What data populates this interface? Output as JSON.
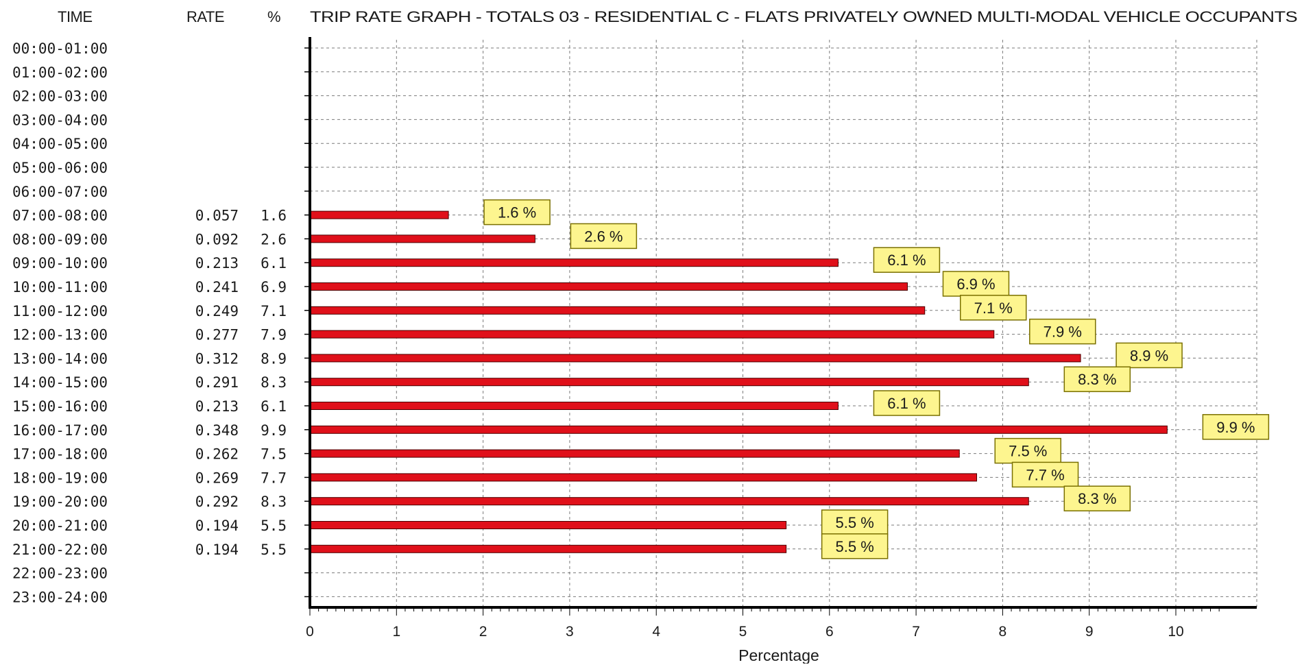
{
  "header": {
    "time": "TIME",
    "rate": "RATE",
    "pct": "%",
    "title": "TRIP RATE GRAPH - TOTALS  03 - RESIDENTIAL  C - FLATS PRIVATELY OWNED     MULTI-MODAL  VEHICLE OCCUPANTS"
  },
  "colors": {
    "bar": "#e0101a",
    "bar_border": "#4a0000",
    "label_bg": "#fdf58f",
    "label_border": "#7a7000",
    "grid": "#7a7a7a",
    "axis": "#000000"
  },
  "chart_data": {
    "type": "bar",
    "orientation": "horizontal",
    "title": "TRIP RATE GRAPH - TOTALS  03 - RESIDENTIAL  C - FLATS PRIVATELY OWNED     MULTI-MODAL  VEHICLE OCCUPANTS",
    "xlabel": "Percentage",
    "xlim": [
      0,
      10.5
    ],
    "xticks": [
      "0",
      "1",
      "2",
      "3",
      "4",
      "5",
      "6",
      "7",
      "8",
      "9",
      "10"
    ],
    "grid": true,
    "categories": [
      "00:00-01:00",
      "01:00-02:00",
      "02:00-03:00",
      "03:00-04:00",
      "04:00-05:00",
      "05:00-06:00",
      "06:00-07:00",
      "07:00-08:00",
      "08:00-09:00",
      "09:00-10:00",
      "10:00-11:00",
      "11:00-12:00",
      "12:00-13:00",
      "13:00-14:00",
      "14:00-15:00",
      "15:00-16:00",
      "16:00-17:00",
      "17:00-18:00",
      "18:00-19:00",
      "19:00-20:00",
      "20:00-21:00",
      "21:00-22:00",
      "22:00-23:00",
      "23:00-24:00"
    ],
    "rates": [
      "",
      "",
      "",
      "",
      "",
      "",
      "",
      "0.057",
      "0.092",
      "0.213",
      "0.241",
      "0.249",
      "0.277",
      "0.312",
      "0.291",
      "0.213",
      "0.348",
      "0.262",
      "0.269",
      "0.292",
      "0.194",
      "0.194",
      "",
      ""
    ],
    "pct_text": [
      "",
      "",
      "",
      "",
      "",
      "",
      "",
      "1.6",
      "2.6",
      "6.1",
      "6.9",
      "7.1",
      "7.9",
      "8.9",
      "8.3",
      "6.1",
      "9.9",
      "7.5",
      "7.7",
      "8.3",
      "5.5",
      "5.5",
      "",
      ""
    ],
    "values": [
      null,
      null,
      null,
      null,
      null,
      null,
      null,
      1.6,
      2.6,
      6.1,
      6.9,
      7.1,
      7.9,
      8.9,
      8.3,
      6.1,
      9.9,
      7.5,
      7.7,
      8.3,
      5.5,
      5.5,
      null,
      null
    ],
    "data_labels": [
      "",
      "",
      "",
      "",
      "",
      "",
      "",
      "1.6 %",
      "2.6 %",
      "6.1 %",
      "6.9 %",
      "7.1 %",
      "7.9 %",
      "8.9 %",
      "8.3 %",
      "6.1 %",
      "9.9 %",
      "7.5 %",
      "7.7 %",
      "8.3 %",
      "5.5 %",
      "5.5 %",
      "",
      ""
    ]
  }
}
